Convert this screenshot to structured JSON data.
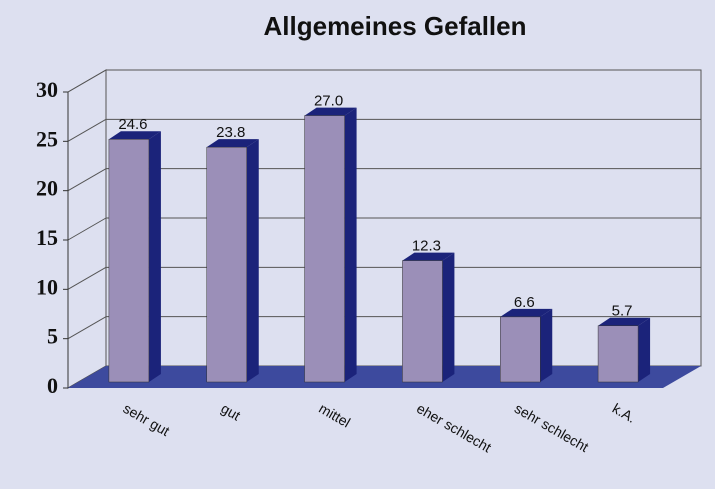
{
  "chart_data": {
    "type": "bar3d",
    "title": "Allgemeines Gefallen",
    "categories": [
      "sehr gut",
      "gut",
      "mittel",
      "eher schlecht",
      "sehr schlecht",
      "k.A."
    ],
    "values": [
      24.6,
      23.8,
      27.0,
      12.3,
      6.6,
      5.7
    ],
    "value_labels": [
      "24.6",
      "23.8",
      "27.0",
      "12.3",
      "6.6",
      "5.7"
    ],
    "color": "#9b8fb8",
    "side_color": "#1b237a",
    "floor_color": "#3d4a9e",
    "ylim": [
      0,
      30
    ],
    "yticks": [
      0,
      5,
      10,
      15,
      20,
      25,
      30
    ],
    "grid": true
  }
}
